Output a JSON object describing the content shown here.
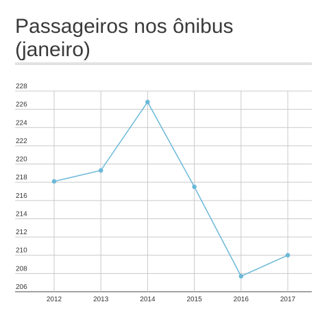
{
  "title": "Passageiros nos ônibus (janeiro)",
  "colors": {
    "line": "#6bb8d8",
    "grid": "#c9c9c9",
    "axis": "#444444",
    "title_rule": "#e2e2e2"
  },
  "chart_data": {
    "type": "line",
    "title": "Passageiros nos ônibus (janeiro)",
    "xlabel": "",
    "ylabel": "",
    "categories": [
      "2012",
      "2013",
      "2014",
      "2015",
      "2016",
      "2017"
    ],
    "series": [
      {
        "values": [
          218.1,
          219.3,
          226.8,
          217.5,
          207.7,
          210.0
        ]
      }
    ],
    "ylim": [
      206,
      228
    ],
    "yticks": [
      206,
      208,
      210,
      212,
      214,
      216,
      218,
      220,
      222,
      224,
      226,
      228
    ],
    "grid": true,
    "legend": "none"
  }
}
